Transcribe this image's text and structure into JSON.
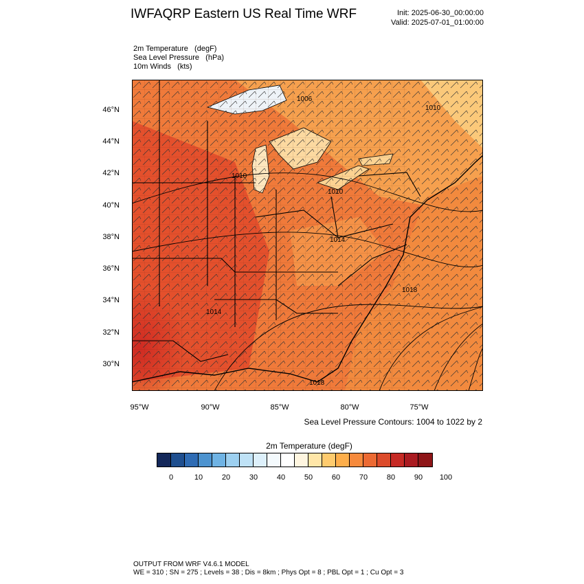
{
  "header": {
    "title": "IWFAQRP Eastern US Real Time WRF",
    "init": "Init: 2025-06-30_00:00:00",
    "valid": "Valid: 2025-07-01_01:00:00"
  },
  "fields": [
    "2m Temperature   (degF)",
    "Sea Level Pressure   (hPa)",
    "10m Winds   (kts)"
  ],
  "map": {
    "lat_labels": [
      "46°N",
      "44°N",
      "42°N",
      "40°N",
      "38°N",
      "36°N",
      "34°N",
      "32°N",
      "30°N"
    ],
    "lon_labels": [
      "95°W",
      "90°W",
      "85°W",
      "80°W",
      "75°W"
    ],
    "pressure_labels": [
      "1006",
      "1010",
      "1010",
      "1010",
      "1014",
      "1018",
      "1014",
      "1018"
    ],
    "colors": {
      "hot": "#d73027",
      "warm": "#f46d43",
      "mild": "#fdae61",
      "cool": "#fee090",
      "lake": "#e8eef4",
      "border": "#000000"
    }
  },
  "contour_note": "Sea Level Pressure Contours: 1004 to 1022 by 2",
  "colorbar": {
    "title": "2m Temperature  (degF)",
    "colors": [
      "#14285a",
      "#1f4f8f",
      "#2f6cb4",
      "#4d93cf",
      "#6fb3e4",
      "#9dd0f0",
      "#bfe2f6",
      "#ddf0fb",
      "#f4fafd",
      "#ffffff",
      "#fff6e0",
      "#ffe6a8",
      "#fecb6e",
      "#fdae4b",
      "#f68a3c",
      "#ec6a33",
      "#dc4b2b",
      "#c62a25",
      "#aa1b21",
      "#8e1518"
    ],
    "labels": [
      "0",
      "10",
      "20",
      "30",
      "40",
      "50",
      "60",
      "70",
      "80",
      "90",
      "100"
    ]
  },
  "footer": {
    "line1": "OUTPUT FROM WRF V4.6.1 MODEL",
    "line2": "WE = 310 ; SN = 275 ; Levels = 38 ; Dis = 8km ; Phys Opt = 8 ; PBL Opt = 1 ; Cu Opt = 3"
  }
}
